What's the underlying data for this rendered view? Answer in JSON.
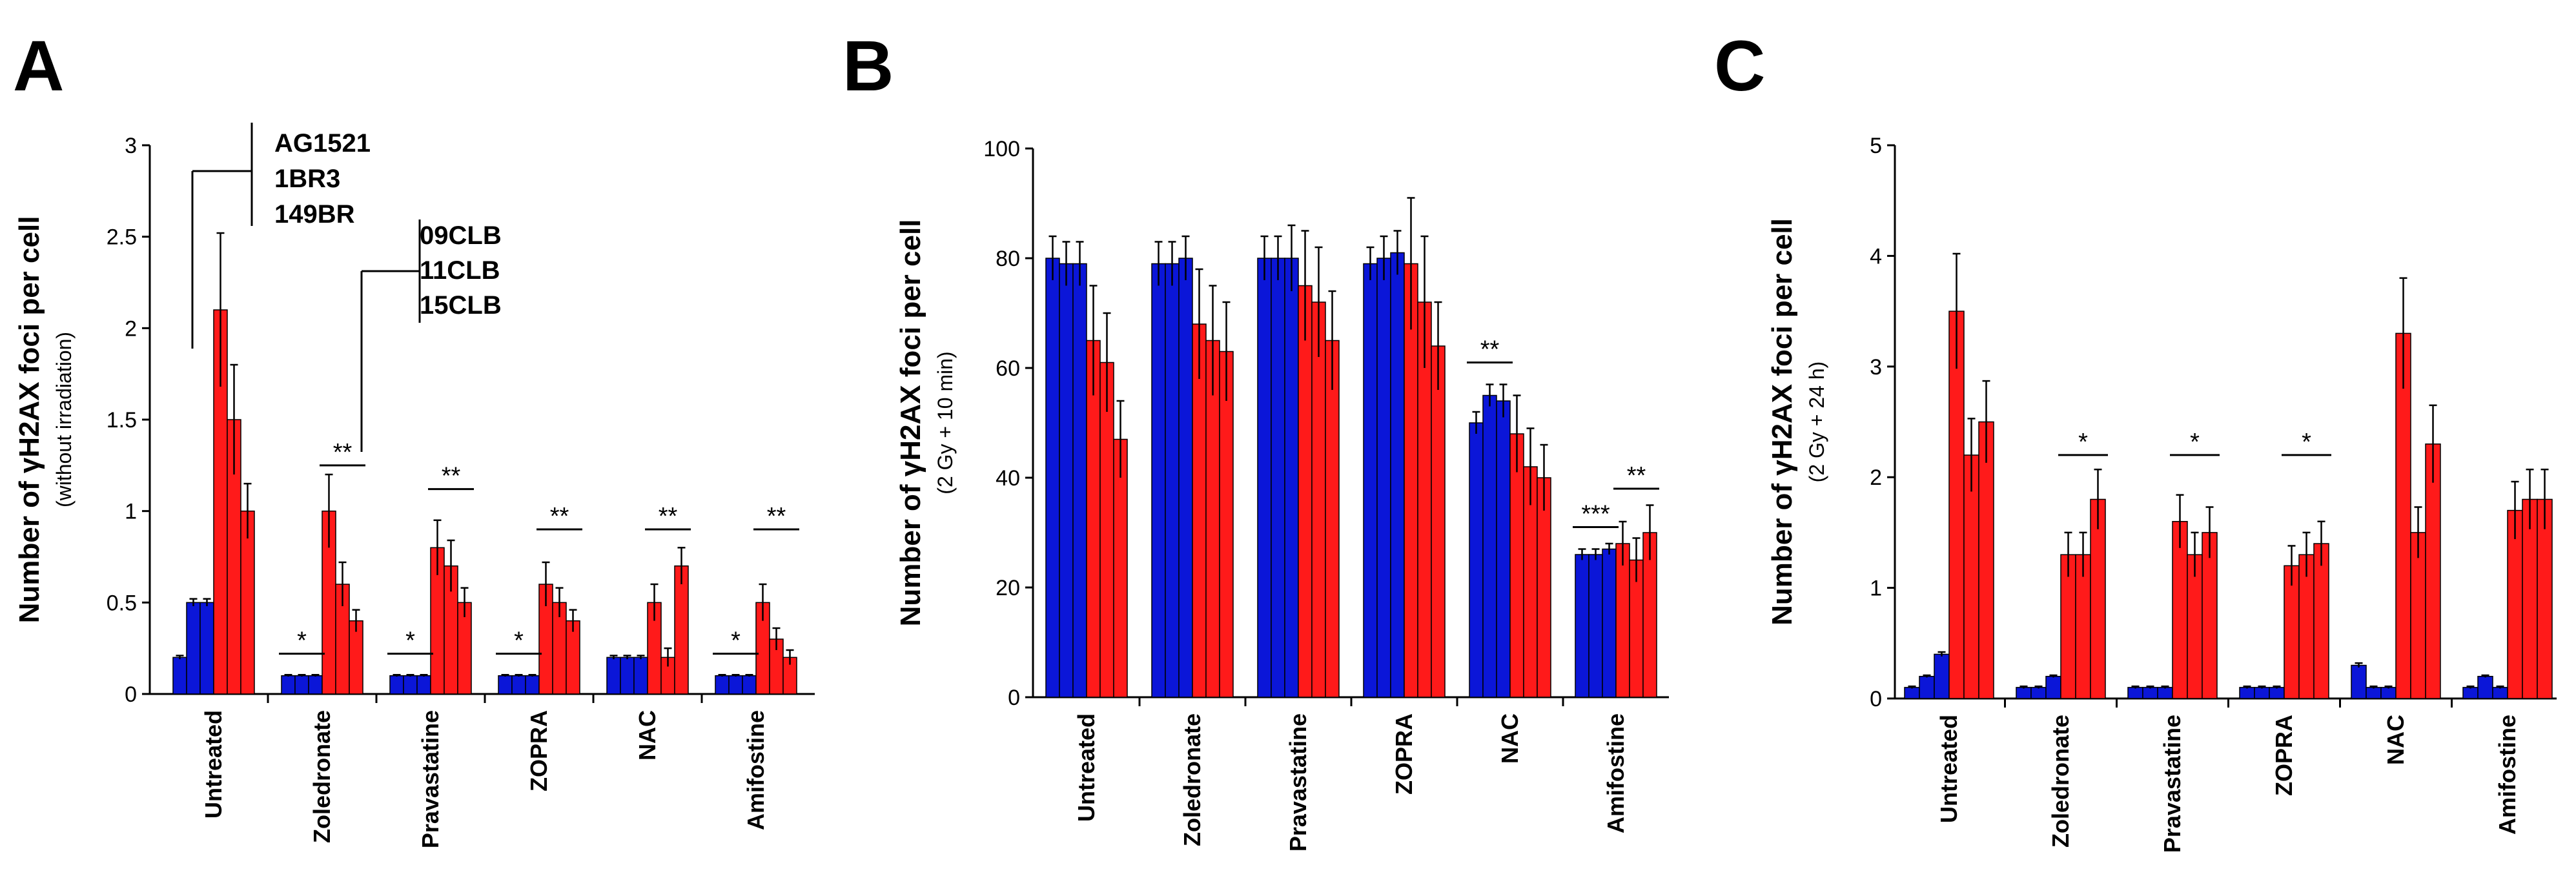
{
  "colors": {
    "cell_lines_control": "#0b16d8",
    "cell_lines_cll": "#ff1a1a"
  },
  "legend": {
    "control_cell_lines": [
      "AG1521",
      "1BR3",
      "149BR"
    ],
    "cll_cell_lines": [
      "09CLB",
      "11CLB",
      "15CLB"
    ]
  },
  "chart_data": [
    {
      "panel": "A",
      "type": "bar",
      "ylabel": "Number of γH2AX foci per cell",
      "ylabel_sub": "(without irradiation)",
      "ylim": [
        0,
        3
      ],
      "yticks": [
        0,
        0.5,
        1,
        1.5,
        2,
        2.5,
        3
      ],
      "ytick_labels": [
        "0",
        "0.5",
        "1",
        "1.5",
        "2",
        "2.5",
        "3"
      ],
      "categories": [
        "Untreated",
        "Zoledronate",
        "Pravastatine",
        "ZOPRA",
        "NAC",
        "Amifostine"
      ],
      "series": [
        {
          "name": "AG1521",
          "group": "control",
          "values": [
            0.2,
            0.1,
            0.1,
            0.1,
            0.2,
            0.1
          ],
          "errors": [
            0.01,
            0.005,
            0.005,
            0.005,
            0.01,
            0.005
          ]
        },
        {
          "name": "1BR3",
          "group": "control",
          "values": [
            0.5,
            0.1,
            0.1,
            0.1,
            0.2,
            0.1
          ],
          "errors": [
            0.02,
            0.005,
            0.005,
            0.005,
            0.01,
            0.005
          ]
        },
        {
          "name": "149BR",
          "group": "control",
          "values": [
            0.5,
            0.1,
            0.1,
            0.1,
            0.2,
            0.1
          ],
          "errors": [
            0.02,
            0.005,
            0.005,
            0.005,
            0.01,
            0.005
          ]
        },
        {
          "name": "09CLB",
          "group": "cll",
          "values": [
            2.1,
            1.0,
            0.8,
            0.6,
            0.5,
            0.5
          ],
          "errors": [
            0.42,
            0.2,
            0.15,
            0.12,
            0.1,
            0.1
          ]
        },
        {
          "name": "11CLB",
          "group": "cll",
          "values": [
            1.5,
            0.6,
            0.7,
            0.5,
            0.2,
            0.3
          ],
          "errors": [
            0.3,
            0.12,
            0.14,
            0.08,
            0.05,
            0.06
          ]
        },
        {
          "name": "15CLB",
          "group": "cll",
          "values": [
            1.0,
            0.4,
            0.5,
            0.4,
            0.7,
            0.2
          ],
          "errors": [
            0.15,
            0.06,
            0.08,
            0.06,
            0.1,
            0.04
          ]
        }
      ],
      "annotations": [
        {
          "label": "*",
          "category": "Zoledronate",
          "over": "control",
          "y": 0.22
        },
        {
          "label": "**",
          "category": "Zoledronate",
          "over": "cll",
          "y": 1.25
        },
        {
          "label": "*",
          "category": "Pravastatine",
          "over": "control",
          "y": 0.22
        },
        {
          "label": "**",
          "category": "Pravastatine",
          "over": "cll",
          "y": 1.12
        },
        {
          "label": "*",
          "category": "ZOPRA",
          "over": "control",
          "y": 0.22
        },
        {
          "label": "**",
          "category": "ZOPRA",
          "over": "cll",
          "y": 0.9
        },
        {
          "label": "**",
          "category": "NAC",
          "over": "cll",
          "y": 0.9
        },
        {
          "label": "*",
          "category": "Amifostine",
          "over": "control",
          "y": 0.22
        },
        {
          "label": "**",
          "category": "Amifostine",
          "over": "cll",
          "y": 0.9
        }
      ]
    },
    {
      "panel": "B",
      "type": "bar",
      "ylabel": "Number of γH2AX foci per cell",
      "ylabel_sub": "(2 Gy + 10 min)",
      "ylim": [
        0,
        100
      ],
      "yticks": [
        0,
        20,
        40,
        60,
        80,
        100
      ],
      "ytick_labels": [
        "0",
        "20",
        "40",
        "60",
        "80",
        "100"
      ],
      "categories": [
        "Untreated",
        "Zoledronate",
        "Pravastatine",
        "ZOPRA",
        "NAC",
        "Amifostine"
      ],
      "series": [
        {
          "name": "AG1521",
          "group": "control",
          "values": [
            80,
            79,
            80,
            79,
            50,
            26
          ],
          "errors": [
            4,
            4,
            4,
            3,
            2,
            1
          ]
        },
        {
          "name": "1BR3",
          "group": "control",
          "values": [
            79,
            79,
            80,
            80,
            55,
            26
          ],
          "errors": [
            4,
            4,
            4,
            4,
            2,
            1
          ]
        },
        {
          "name": "149BR",
          "group": "control",
          "values": [
            79,
            80,
            80,
            81,
            54,
            27
          ],
          "errors": [
            4,
            4,
            6,
            4,
            3,
            1
          ]
        },
        {
          "name": "09CLB",
          "group": "cll",
          "values": [
            65,
            68,
            75,
            79,
            48,
            28
          ],
          "errors": [
            10,
            10,
            10,
            12,
            7,
            4
          ]
        },
        {
          "name": "11CLB",
          "group": "cll",
          "values": [
            61,
            65,
            72,
            72,
            42,
            25
          ],
          "errors": [
            9,
            10,
            10,
            12,
            7,
            4
          ]
        },
        {
          "name": "15CLB",
          "group": "cll",
          "values": [
            47,
            63,
            65,
            64,
            40,
            30
          ],
          "errors": [
            7,
            9,
            9,
            8,
            6,
            5
          ]
        }
      ],
      "annotations": [
        {
          "label": "**",
          "category": "NAC",
          "over": "control",
          "y": 61
        },
        {
          "label": "***",
          "category": "Amifostine",
          "over": "control",
          "y": 31
        },
        {
          "label": "**",
          "category": "Amifostine",
          "over": "cll",
          "y": 38
        }
      ]
    },
    {
      "panel": "C",
      "type": "bar",
      "ylabel": "Number of γH2AX foci per cell",
      "ylabel_sub": "(2 Gy + 24 h)",
      "ylim": [
        0,
        5
      ],
      "yticks": [
        0,
        1,
        2,
        3,
        4,
        5
      ],
      "ytick_labels": [
        "0",
        "1",
        "2",
        "3",
        "4",
        "5"
      ],
      "categories": [
        "Untreated",
        "Zoledronate",
        "Pravastatine",
        "ZOPRA",
        "NAC",
        "Amifostine"
      ],
      "series": [
        {
          "name": "AG1521",
          "group": "control",
          "values": [
            0.1,
            0.1,
            0.1,
            0.1,
            0.3,
            0.1
          ],
          "errors": [
            0.01,
            0.01,
            0.01,
            0.01,
            0.02,
            0.01
          ]
        },
        {
          "name": "1BR3",
          "group": "control",
          "values": [
            0.2,
            0.1,
            0.1,
            0.1,
            0.1,
            0.2
          ],
          "errors": [
            0.01,
            0.01,
            0.01,
            0.01,
            0.01,
            0.01
          ]
        },
        {
          "name": "149BR",
          "group": "control",
          "values": [
            0.4,
            0.2,
            0.1,
            0.1,
            0.1,
            0.1
          ],
          "errors": [
            0.02,
            0.01,
            0.01,
            0.01,
            0.01,
            0.01
          ]
        },
        {
          "name": "09CLB",
          "group": "cll",
          "values": [
            3.5,
            1.3,
            1.6,
            1.2,
            3.3,
            1.7
          ],
          "errors": [
            0.52,
            0.2,
            0.24,
            0.18,
            0.5,
            0.26
          ]
        },
        {
          "name": "11CLB",
          "group": "cll",
          "values": [
            2.2,
            1.3,
            1.3,
            1.3,
            1.5,
            1.8
          ],
          "errors": [
            0.33,
            0.2,
            0.2,
            0.2,
            0.23,
            0.27
          ]
        },
        {
          "name": "15CLB",
          "group": "cll",
          "values": [
            2.5,
            1.8,
            1.5,
            1.4,
            2.3,
            1.8
          ],
          "errors": [
            0.37,
            0.27,
            0.23,
            0.2,
            0.35,
            0.27
          ]
        }
      ],
      "annotations": [
        {
          "label": "*",
          "category": "Zoledronate",
          "over": "cll",
          "y": 2.2
        },
        {
          "label": "*",
          "category": "Pravastatine",
          "over": "cll",
          "y": 2.2
        },
        {
          "label": "*",
          "category": "ZOPRA",
          "over": "cll",
          "y": 2.2
        }
      ]
    }
  ]
}
